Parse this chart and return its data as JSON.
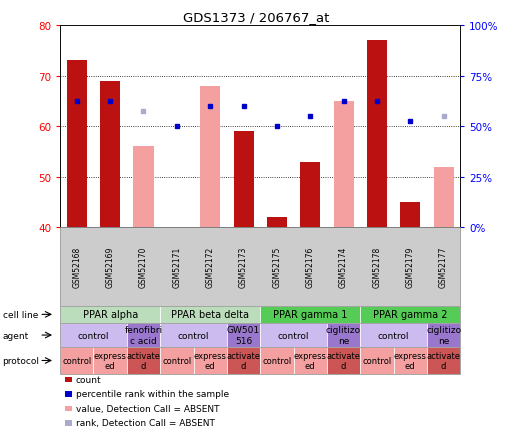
{
  "title": "GDS1373 / 206767_at",
  "samples": [
    "GSM52168",
    "GSM52169",
    "GSM52170",
    "GSM52171",
    "GSM52172",
    "GSM52173",
    "GSM52175",
    "GSM52176",
    "GSM52174",
    "GSM52178",
    "GSM52179",
    "GSM52177"
  ],
  "count_values": [
    73,
    69,
    null,
    null,
    null,
    59,
    42,
    53,
    null,
    77,
    45,
    null
  ],
  "count_absent": [
    null,
    null,
    56,
    null,
    68,
    null,
    null,
    null,
    65,
    null,
    null,
    52
  ],
  "rank_values": [
    65,
    65,
    null,
    60,
    64,
    64,
    60,
    62,
    65,
    65,
    61,
    null
  ],
  "rank_absent": [
    null,
    null,
    63,
    null,
    null,
    null,
    null,
    null,
    null,
    null,
    null,
    62
  ],
  "ylim_left": [
    40,
    80
  ],
  "ylim_right": [
    0,
    100
  ],
  "yticks_left": [
    40,
    50,
    60,
    70,
    80
  ],
  "yticks_right": [
    0,
    25,
    50,
    75,
    100
  ],
  "ytick_labels_right": [
    "0%",
    "25%",
    "50%",
    "75%",
    "100%"
  ],
  "bar_color_count": "#bb1111",
  "bar_color_absent": "#f4a0a0",
  "dot_color_rank": "#0000cc",
  "dot_color_rank_absent": "#aaaacc",
  "cell_lines": [
    {
      "label": "PPAR alpha",
      "start": 0,
      "end": 3,
      "color": "#bbddbb"
    },
    {
      "label": "PPAR beta delta",
      "start": 3,
      "end": 6,
      "color": "#bbddbb"
    },
    {
      "label": "PPAR gamma 1",
      "start": 6,
      "end": 9,
      "color": "#55cc55"
    },
    {
      "label": "PPAR gamma 2",
      "start": 9,
      "end": 12,
      "color": "#55cc55"
    }
  ],
  "agents": [
    {
      "label": "control",
      "start": 0,
      "end": 2,
      "color": "#ccbbee"
    },
    {
      "label": "fenofibri\nc acid",
      "start": 2,
      "end": 3,
      "color": "#9977cc"
    },
    {
      "label": "control",
      "start": 3,
      "end": 5,
      "color": "#ccbbee"
    },
    {
      "label": "GW501\n516",
      "start": 5,
      "end": 6,
      "color": "#9977cc"
    },
    {
      "label": "control",
      "start": 6,
      "end": 8,
      "color": "#ccbbee"
    },
    {
      "label": "ciglitizo\nne",
      "start": 8,
      "end": 9,
      "color": "#9977cc"
    },
    {
      "label": "control",
      "start": 9,
      "end": 11,
      "color": "#ccbbee"
    },
    {
      "label": "ciglitizo\nne",
      "start": 11,
      "end": 12,
      "color": "#9977cc"
    }
  ],
  "protocols": [
    {
      "label": "control",
      "start": 0,
      "end": 1,
      "color": "#f4a0a0"
    },
    {
      "label": "express\ned",
      "start": 1,
      "end": 2,
      "color": "#f4a0a0"
    },
    {
      "label": "activate\nd",
      "start": 2,
      "end": 3,
      "color": "#cc5555"
    },
    {
      "label": "control",
      "start": 3,
      "end": 4,
      "color": "#f4a0a0"
    },
    {
      "label": "express\ned",
      "start": 4,
      "end": 5,
      "color": "#f4a0a0"
    },
    {
      "label": "activate\nd",
      "start": 5,
      "end": 6,
      "color": "#cc5555"
    },
    {
      "label": "control",
      "start": 6,
      "end": 7,
      "color": "#f4a0a0"
    },
    {
      "label": "express\ned",
      "start": 7,
      "end": 8,
      "color": "#f4a0a0"
    },
    {
      "label": "activate\nd",
      "start": 8,
      "end": 9,
      "color": "#cc5555"
    },
    {
      "label": "control",
      "start": 9,
      "end": 10,
      "color": "#f4a0a0"
    },
    {
      "label": "express\ned",
      "start": 10,
      "end": 11,
      "color": "#f4a0a0"
    },
    {
      "label": "activate\nd",
      "start": 11,
      "end": 12,
      "color": "#cc5555"
    }
  ],
  "legend_items": [
    {
      "label": "count",
      "color": "#bb1111"
    },
    {
      "label": "percentile rank within the sample",
      "color": "#0000cc"
    },
    {
      "label": "value, Detection Call = ABSENT",
      "color": "#f4a0a0"
    },
    {
      "label": "rank, Detection Call = ABSENT",
      "color": "#aaaacc"
    }
  ],
  "row_labels": [
    "cell line",
    "agent",
    "protocol"
  ],
  "sample_bg_color": "#cccccc",
  "border_color": "#888888",
  "background_color": "#ffffff"
}
